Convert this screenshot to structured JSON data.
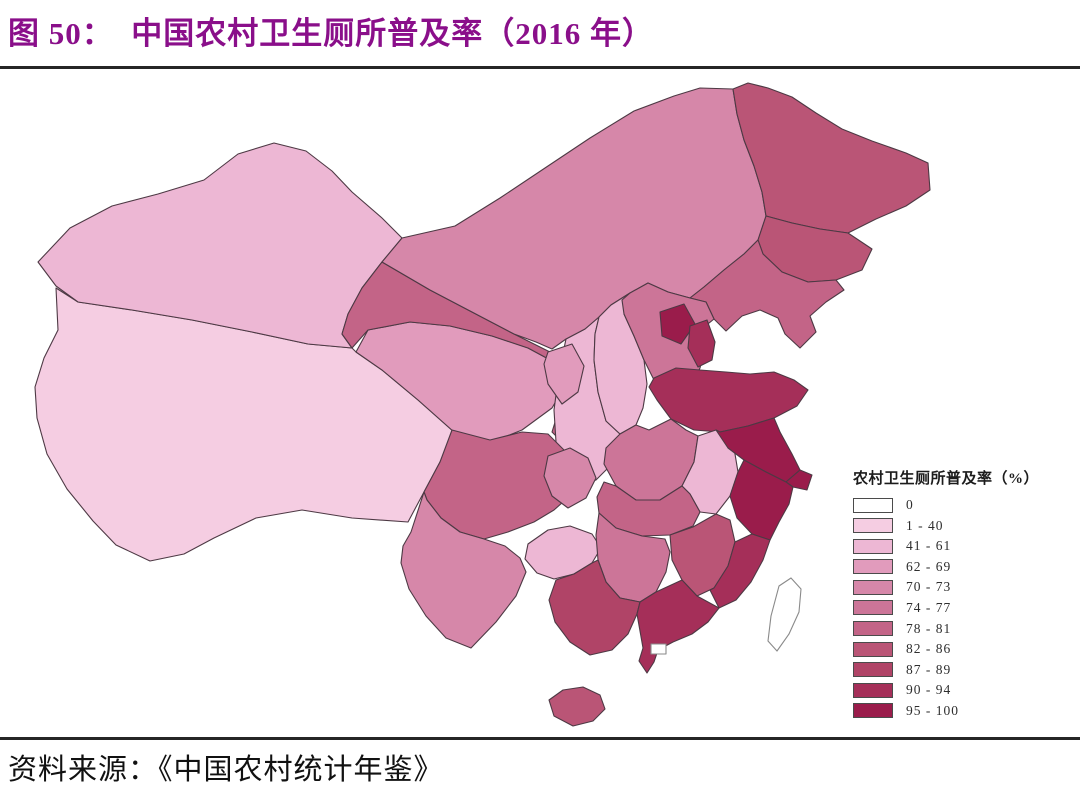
{
  "figure": {
    "title": "图 50：  中国农村卫生厕所普及率（2016 年）",
    "title_color": "#8A0F8A",
    "source": "资料来源：《中国农村统计年鉴》"
  },
  "legend": {
    "title": "农村卫生厕所普及率（%）",
    "classes": [
      {
        "label": "0",
        "color": "#FFFFFF"
      },
      {
        "label": "1 - 40",
        "color": "#F5CDE2"
      },
      {
        "label": "41 - 61",
        "color": "#EDB7D4"
      },
      {
        "label": "62 - 69",
        "color": "#E19BBC"
      },
      {
        "label": "70 - 73",
        "color": "#D687A9"
      },
      {
        "label": "74 - 77",
        "color": "#CC7598"
      },
      {
        "label": "78 - 81",
        "color": "#C36487"
      },
      {
        "label": "82 - 86",
        "color": "#BA5576"
      },
      {
        "label": "87 - 89",
        "color": "#B04467"
      },
      {
        "label": "90 - 94",
        "color": "#A52F59"
      },
      {
        "label": "95 - 100",
        "color": "#9A1C4B"
      }
    ]
  },
  "map": {
    "border_color": "#4D3944",
    "no_data_stroke": "#8A8A8A"
  },
  "chart_data": {
    "type": "choropleth_map",
    "region": "China, province level",
    "metric": "农村卫生厕所普及率（%）",
    "year": "2016",
    "provinces": [
      {
        "id": "XJ",
        "name": "新疆",
        "range": "41 - 61"
      },
      {
        "id": "XZ",
        "name": "西藏",
        "range": "1 - 40"
      },
      {
        "id": "QH",
        "name": "青海",
        "range": "62 - 69"
      },
      {
        "id": "GS",
        "name": "甘肃",
        "range": "78 - 81"
      },
      {
        "id": "NX",
        "name": "宁夏",
        "range": "62 - 69"
      },
      {
        "id": "IM",
        "name": "内蒙古",
        "range": "70 - 73"
      },
      {
        "id": "HLJ",
        "name": "黑龙江",
        "range": "82 - 86"
      },
      {
        "id": "JL",
        "name": "吉林",
        "range": "82 - 86"
      },
      {
        "id": "LN",
        "name": "辽宁",
        "range": "78 - 81"
      },
      {
        "id": "HE",
        "name": "河北",
        "range": "74 - 77"
      },
      {
        "id": "BJ",
        "name": "北京",
        "range": "95 - 100"
      },
      {
        "id": "TJ",
        "name": "天津",
        "range": "90 - 94"
      },
      {
        "id": "SX",
        "name": "山西",
        "range": "41 - 61"
      },
      {
        "id": "SN",
        "name": "陕西",
        "range": "41 - 61"
      },
      {
        "id": "SD",
        "name": "山东",
        "range": "90 - 94"
      },
      {
        "id": "HA",
        "name": "河南",
        "range": "74 - 77"
      },
      {
        "id": "AH",
        "name": "安徽",
        "range": "41 - 61"
      },
      {
        "id": "JS",
        "name": "江苏",
        "range": "95 - 100"
      },
      {
        "id": "SH",
        "name": "上海",
        "range": "95 - 100"
      },
      {
        "id": "ZJ",
        "name": "浙江",
        "range": "95 - 100"
      },
      {
        "id": "HB",
        "name": "湖北",
        "range": "78 - 81"
      },
      {
        "id": "SC",
        "name": "四川",
        "range": "78 - 81"
      },
      {
        "id": "CQ",
        "name": "重庆",
        "range": "70 - 73"
      },
      {
        "id": "GZ",
        "name": "贵州",
        "range": "41 - 61"
      },
      {
        "id": "YN",
        "name": "云南",
        "range": "70 - 73"
      },
      {
        "id": "HN",
        "name": "湖南",
        "range": "74 - 77"
      },
      {
        "id": "JX",
        "name": "江西",
        "range": "82 - 86"
      },
      {
        "id": "FJ",
        "name": "福建",
        "range": "90 - 94"
      },
      {
        "id": "GX",
        "name": "广西",
        "range": "87 - 89"
      },
      {
        "id": "GD",
        "name": "广东",
        "range": "90 - 94"
      },
      {
        "id": "HI",
        "name": "海南",
        "range": "82 - 86"
      },
      {
        "id": "TW",
        "name": "台湾",
        "range": "0"
      }
    ]
  }
}
